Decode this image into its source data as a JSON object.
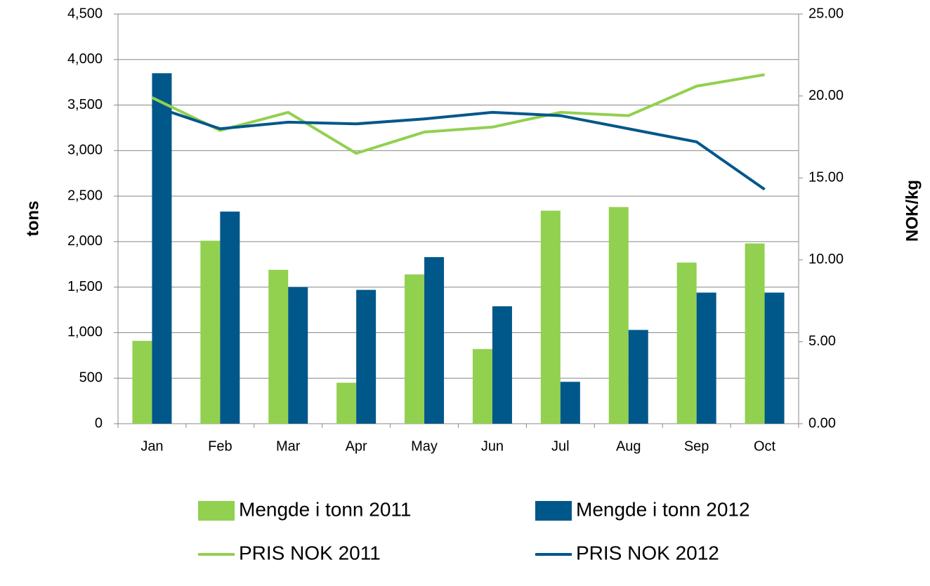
{
  "chart_data": {
    "type": "bar-line",
    "y_label": "tons",
    "y2_label": "NOK/kg",
    "categories": [
      "Jan",
      "Feb",
      "Mar",
      "Apr",
      "May",
      "Jun",
      "Jul",
      "Aug",
      "Sep",
      "Oct"
    ],
    "series": [
      {
        "name": "Mengde i tonn 2011",
        "type": "bar",
        "color": "#92d050",
        "values": [
          910,
          2010,
          1690,
          450,
          1640,
          820,
          2340,
          2380,
          1770,
          1980
        ]
      },
      {
        "name": "Mengde i tonn 2012",
        "type": "bar",
        "color": "#00578a",
        "values": [
          3850,
          2330,
          1500,
          1470,
          1830,
          1290,
          460,
          1030,
          1440,
          1440
        ]
      },
      {
        "name": "PRIS NOK 2011",
        "type": "line",
        "axis": "y2",
        "color": "#92d050",
        "values": [
          19.9,
          17.9,
          19.0,
          16.5,
          17.8,
          18.1,
          19.0,
          18.8,
          20.6,
          21.3
        ]
      },
      {
        "name": "PRIS NOK 2012",
        "type": "line",
        "axis": "y2",
        "color": "#00578a",
        "values": [
          19.4,
          18.0,
          18.4,
          18.3,
          18.6,
          19.0,
          18.8,
          18.0,
          17.2,
          14.3
        ]
      }
    ],
    "ylim": [
      0,
      4500
    ],
    "yticks": [
      0,
      500,
      {
        "value": 1000,
        "label": "1,000"
      },
      {
        "value": 1500,
        "label": "1,500"
      },
      {
        "value": 2000,
        "label": "2,000"
      },
      {
        "value": 2500,
        "label": "2,500"
      },
      {
        "value": 3000,
        "label": "3,000"
      },
      {
        "value": 3500,
        "label": "3,500"
      },
      {
        "value": 4000,
        "label": "4,000"
      },
      {
        "value": 4500,
        "label": "4,500"
      }
    ],
    "y2lim": [
      0,
      25
    ],
    "y2ticks": [
      {
        "value": 0,
        "label": "0.00"
      },
      {
        "value": 5,
        "label": "5.00"
      },
      {
        "value": 10,
        "label": "10.00"
      },
      {
        "value": 15,
        "label": "15.00"
      },
      {
        "value": 20,
        "label": "20.00"
      },
      {
        "value": 25,
        "label": "25.00"
      }
    ],
    "grid": true,
    "legend": "bottom"
  }
}
